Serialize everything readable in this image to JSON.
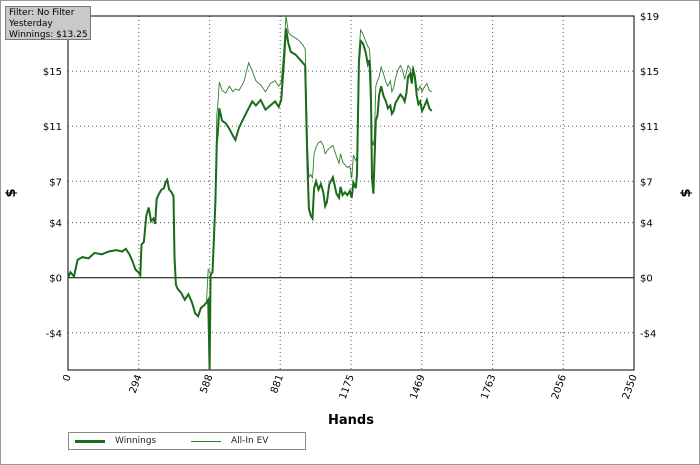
{
  "filter_box": {
    "line1": "Filter: No Filter",
    "line2": "Yesterday",
    "line3": "Winnings: $13.25"
  },
  "colors": {
    "winnings": "#1a6b1a",
    "all_in_ev": "#2f7d2f",
    "grid": "#555555",
    "zero_line": "#000000"
  },
  "chart_data": {
    "type": "line",
    "xlabel": "Hands",
    "ylabel_left": "$",
    "ylabel_right": "$",
    "xlim": [
      0,
      2350
    ],
    "ylim": [
      -6.7,
      19
    ],
    "x_ticks": [
      0,
      294,
      588,
      881,
      1175,
      1469,
      1763,
      2056,
      2350
    ],
    "x_tick_labels": [
      "0",
      "294",
      "588",
      "881",
      "1175",
      "1469",
      "1763",
      "2056",
      "2350"
    ],
    "y_ticks": [
      -4,
      0,
      4,
      7,
      11,
      15,
      19
    ],
    "y_tick_labels": [
      "-$4",
      "$0",
      "$4",
      "$7",
      "$11",
      "$15",
      "$19"
    ],
    "grid": true,
    "legend_position": "bottom-left",
    "series": [
      {
        "name": "Winnings",
        "style": "thick",
        "points": [
          [
            0,
            0
          ],
          [
            10,
            0.4
          ],
          [
            25,
            0.1
          ],
          [
            40,
            1.3
          ],
          [
            60,
            1.5
          ],
          [
            85,
            1.4
          ],
          [
            110,
            1.8
          ],
          [
            140,
            1.7
          ],
          [
            170,
            1.9
          ],
          [
            200,
            2.0
          ],
          [
            225,
            1.9
          ],
          [
            240,
            2.1
          ],
          [
            255,
            1.7
          ],
          [
            268,
            1.2
          ],
          [
            280,
            0.6
          ],
          [
            292,
            0.4
          ],
          [
            300,
            0.2
          ],
          [
            305,
            2.4
          ],
          [
            315,
            2.6
          ],
          [
            325,
            4.5
          ],
          [
            335,
            5.1
          ],
          [
            345,
            4.1
          ],
          [
            355,
            4.3
          ],
          [
            362,
            3.9
          ],
          [
            368,
            5.7
          ],
          [
            378,
            6.1
          ],
          [
            388,
            6.4
          ],
          [
            398,
            6.5
          ],
          [
            405,
            6.9
          ],
          [
            412,
            7.1
          ],
          [
            420,
            6.4
          ],
          [
            430,
            6.2
          ],
          [
            438,
            5.9
          ],
          [
            442,
            1.5
          ],
          [
            448,
            -0.5
          ],
          [
            455,
            -0.8
          ],
          [
            470,
            -1.1
          ],
          [
            485,
            -1.6
          ],
          [
            500,
            -1.2
          ],
          [
            515,
            -1.8
          ],
          [
            528,
            -2.6
          ],
          [
            540,
            -2.8
          ],
          [
            552,
            -2.2
          ],
          [
            565,
            -2.0
          ],
          [
            575,
            -1.8
          ],
          [
            582,
            -1.6
          ],
          [
            588,
            -6.7
          ],
          [
            592,
            0.2
          ],
          [
            600,
            0.4
          ],
          [
            606,
            3.0
          ],
          [
            612,
            5.5
          ],
          [
            618,
            9.8
          ],
          [
            622,
            10.5
          ],
          [
            628,
            12.3
          ],
          [
            640,
            11.4
          ],
          [
            655,
            11.2
          ],
          [
            670,
            10.8
          ],
          [
            685,
            10.3
          ],
          [
            695,
            10.0
          ],
          [
            710,
            10.9
          ],
          [
            730,
            11.6
          ],
          [
            750,
            12.3
          ],
          [
            765,
            12.8
          ],
          [
            780,
            12.5
          ],
          [
            800,
            12.9
          ],
          [
            820,
            12.2
          ],
          [
            840,
            12.5
          ],
          [
            860,
            12.8
          ],
          [
            875,
            12.4
          ],
          [
            885,
            12.9
          ],
          [
            895,
            15.3
          ],
          [
            905,
            18.1
          ],
          [
            915,
            17.0
          ],
          [
            925,
            16.4
          ],
          [
            945,
            16.2
          ],
          [
            960,
            15.9
          ],
          [
            975,
            15.6
          ],
          [
            985,
            15.4
          ],
          [
            990,
            11.3
          ],
          [
            995,
            7.8
          ],
          [
            1000,
            5.0
          ],
          [
            1008,
            4.5
          ],
          [
            1015,
            4.3
          ],
          [
            1022,
            6.5
          ],
          [
            1030,
            7.0
          ],
          [
            1040,
            6.4
          ],
          [
            1050,
            6.8
          ],
          [
            1060,
            6.2
          ],
          [
            1068,
            5.2
          ],
          [
            1075,
            5.5
          ],
          [
            1085,
            6.8
          ],
          [
            1100,
            7.3
          ],
          [
            1115,
            6.1
          ],
          [
            1125,
            5.8
          ],
          [
            1132,
            6.6
          ],
          [
            1140,
            6.0
          ],
          [
            1150,
            6.2
          ],
          [
            1160,
            6.0
          ],
          [
            1170,
            6.3
          ],
          [
            1178,
            5.8
          ],
          [
            1185,
            6.9
          ],
          [
            1195,
            6.5
          ],
          [
            1200,
            7.5
          ],
          [
            1208,
            15.6
          ],
          [
            1215,
            17.2
          ],
          [
            1225,
            17.0
          ],
          [
            1235,
            16.4
          ],
          [
            1245,
            15.5
          ],
          [
            1252,
            15.8
          ],
          [
            1258,
            12.8
          ],
          [
            1262,
            7.2
          ],
          [
            1268,
            6.1
          ],
          [
            1272,
            8.3
          ],
          [
            1278,
            11.4
          ],
          [
            1285,
            11.8
          ],
          [
            1292,
            13.3
          ],
          [
            1300,
            13.9
          ],
          [
            1310,
            13.2
          ],
          [
            1320,
            12.8
          ],
          [
            1328,
            12.3
          ],
          [
            1338,
            12.5
          ],
          [
            1345,
            11.9
          ],
          [
            1352,
            12.1
          ],
          [
            1360,
            12.7
          ],
          [
            1370,
            13.0
          ],
          [
            1380,
            13.3
          ],
          [
            1390,
            13.1
          ],
          [
            1398,
            12.8
          ],
          [
            1405,
            13.4
          ],
          [
            1412,
            14.6
          ],
          [
            1420,
            14.8
          ],
          [
            1428,
            14.1
          ],
          [
            1432,
            15.2
          ],
          [
            1440,
            14.6
          ],
          [
            1448,
            13.2
          ],
          [
            1455,
            12.6
          ],
          [
            1462,
            12.8
          ],
          [
            1470,
            12.1
          ],
          [
            1478,
            12.4
          ],
          [
            1490,
            12.9
          ],
          [
            1500,
            12.3
          ],
          [
            1510,
            12.1
          ]
        ]
      },
      {
        "name": "All-In EV",
        "style": "thin",
        "points": [
          [
            0,
            0
          ],
          [
            10,
            0.4
          ],
          [
            25,
            0.1
          ],
          [
            40,
            1.3
          ],
          [
            60,
            1.5
          ],
          [
            85,
            1.4
          ],
          [
            110,
            1.8
          ],
          [
            140,
            1.7
          ],
          [
            170,
            1.9
          ],
          [
            200,
            2.0
          ],
          [
            225,
            1.9
          ],
          [
            240,
            2.1
          ],
          [
            255,
            1.7
          ],
          [
            268,
            1.2
          ],
          [
            280,
            0.6
          ],
          [
            292,
            0.4
          ],
          [
            300,
            0.2
          ],
          [
            305,
            2.4
          ],
          [
            315,
            2.6
          ],
          [
            325,
            4.5
          ],
          [
            335,
            5.1
          ],
          [
            345,
            4.1
          ],
          [
            355,
            4.3
          ],
          [
            362,
            3.9
          ],
          [
            368,
            5.7
          ],
          [
            378,
            6.1
          ],
          [
            388,
            6.4
          ],
          [
            398,
            6.5
          ],
          [
            405,
            6.9
          ],
          [
            412,
            7.1
          ],
          [
            420,
            6.4
          ],
          [
            430,
            6.2
          ],
          [
            438,
            5.9
          ],
          [
            442,
            1.5
          ],
          [
            448,
            -0.5
          ],
          [
            455,
            -0.8
          ],
          [
            470,
            -1.1
          ],
          [
            485,
            -1.6
          ],
          [
            500,
            -1.2
          ],
          [
            515,
            -1.8
          ],
          [
            528,
            -2.6
          ],
          [
            540,
            -2.8
          ],
          [
            552,
            -2.2
          ],
          [
            565,
            -2.0
          ],
          [
            575,
            -1.8
          ],
          [
            582,
            0.6
          ],
          [
            588,
            0.5
          ],
          [
            592,
            0.2
          ],
          [
            600,
            0.4
          ],
          [
            606,
            3.0
          ],
          [
            612,
            6.0
          ],
          [
            618,
            11.8
          ],
          [
            622,
            12.5
          ],
          [
            628,
            14.2
          ],
          [
            640,
            13.6
          ],
          [
            655,
            13.4
          ],
          [
            670,
            13.9
          ],
          [
            685,
            13.5
          ],
          [
            695,
            13.7
          ],
          [
            710,
            13.6
          ],
          [
            730,
            14.2
          ],
          [
            750,
            15.6
          ],
          [
            765,
            15.0
          ],
          [
            780,
            14.3
          ],
          [
            800,
            14.0
          ],
          [
            820,
            13.5
          ],
          [
            840,
            14.1
          ],
          [
            860,
            14.3
          ],
          [
            875,
            13.9
          ],
          [
            885,
            14.2
          ],
          [
            895,
            16.3
          ],
          [
            905,
            19.0
          ],
          [
            915,
            17.8
          ],
          [
            925,
            17.6
          ],
          [
            945,
            17.4
          ],
          [
            960,
            17.2
          ],
          [
            975,
            16.9
          ],
          [
            985,
            16.6
          ],
          [
            990,
            13.0
          ],
          [
            995,
            9.5
          ],
          [
            1000,
            7.3
          ],
          [
            1008,
            7.5
          ],
          [
            1015,
            7.2
          ],
          [
            1022,
            9.0
          ],
          [
            1030,
            9.5
          ],
          [
            1040,
            9.8
          ],
          [
            1050,
            9.9
          ],
          [
            1060,
            9.6
          ],
          [
            1068,
            9.0
          ],
          [
            1075,
            9.2
          ],
          [
            1085,
            9.4
          ],
          [
            1100,
            9.6
          ],
          [
            1115,
            8.8
          ],
          [
            1125,
            8.3
          ],
          [
            1132,
            9.0
          ],
          [
            1140,
            8.4
          ],
          [
            1150,
            8.2
          ],
          [
            1160,
            8.0
          ],
          [
            1170,
            8.1
          ],
          [
            1178,
            7.2
          ],
          [
            1185,
            8.9
          ],
          [
            1195,
            8.5
          ],
          [
            1200,
            8.8
          ],
          [
            1208,
            16.3
          ],
          [
            1215,
            18.0
          ],
          [
            1225,
            17.7
          ],
          [
            1235,
            17.2
          ],
          [
            1245,
            16.8
          ],
          [
            1252,
            16.6
          ],
          [
            1258,
            14.8
          ],
          [
            1262,
            10.0
          ],
          [
            1268,
            9.6
          ],
          [
            1272,
            10.2
          ],
          [
            1278,
            13.9
          ],
          [
            1285,
            14.3
          ],
          [
            1292,
            14.6
          ],
          [
            1300,
            15.3
          ],
          [
            1310,
            14.8
          ],
          [
            1320,
            14.2
          ],
          [
            1328,
            13.9
          ],
          [
            1338,
            14.3
          ],
          [
            1345,
            13.5
          ],
          [
            1352,
            13.8
          ],
          [
            1360,
            14.5
          ],
          [
            1370,
            15.1
          ],
          [
            1380,
            15.4
          ],
          [
            1390,
            15.0
          ],
          [
            1398,
            14.4
          ],
          [
            1405,
            14.9
          ],
          [
            1412,
            15.4
          ],
          [
            1420,
            15.2
          ],
          [
            1428,
            14.4
          ],
          [
            1432,
            15.4
          ],
          [
            1440,
            14.8
          ],
          [
            1448,
            13.8
          ],
          [
            1455,
            13.6
          ],
          [
            1462,
            13.9
          ],
          [
            1470,
            13.5
          ],
          [
            1478,
            13.8
          ],
          [
            1490,
            14.1
          ],
          [
            1500,
            13.6
          ],
          [
            1510,
            13.5
          ]
        ]
      }
    ]
  },
  "legend": {
    "winnings_label": "Winnings",
    "ev_label": "All-In EV"
  }
}
